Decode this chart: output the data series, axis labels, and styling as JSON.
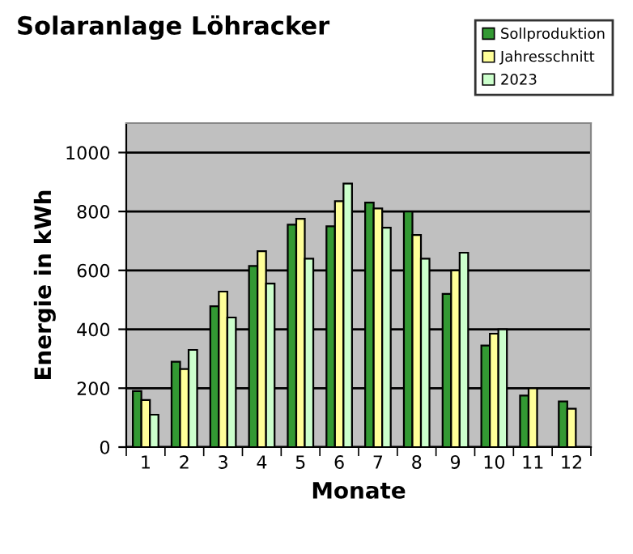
{
  "chart_data": {
    "type": "bar",
    "title": "Solaranlage Löhracker",
    "xlabel": "Monate",
    "ylabel": "Energie in kWh",
    "categories": [
      "1",
      "2",
      "3",
      "4",
      "5",
      "6",
      "7",
      "8",
      "9",
      "10",
      "11",
      "12"
    ],
    "series": [
      {
        "name": "Sollproduktion",
        "color": "#339933",
        "values": [
          190,
          290,
          478,
          615,
          755,
          750,
          830,
          800,
          520,
          345,
          175,
          155
        ]
      },
      {
        "name": "Jahresschnitt",
        "color": "#ffff99",
        "values": [
          160,
          265,
          528,
          665,
          775,
          835,
          810,
          720,
          600,
          385,
          200,
          130
        ]
      },
      {
        "name": "2023",
        "color": "#ccffcc",
        "values": [
          110,
          330,
          440,
          555,
          640,
          895,
          745,
          640,
          660,
          400,
          null,
          null
        ]
      }
    ],
    "ylim": [
      0,
      1100
    ],
    "yticks": [
      0,
      200,
      400,
      600,
      800,
      1000
    ],
    "grid": "y",
    "legend": "top right"
  }
}
